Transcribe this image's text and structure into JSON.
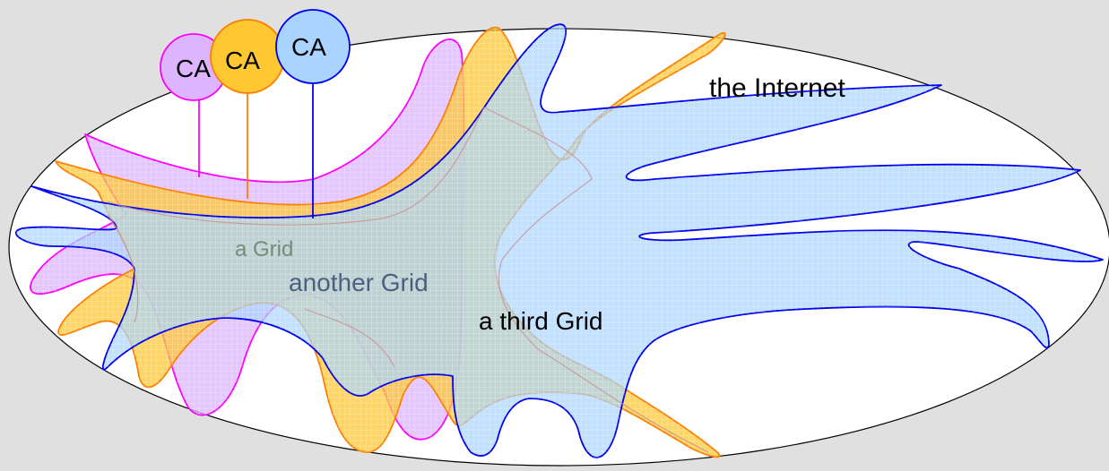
{
  "labels": {
    "internet": "the Internet",
    "grid_a": "a Grid",
    "grid_b": "another Grid",
    "grid_c": "a third Grid",
    "ca_1": "CA",
    "ca_2": "CA",
    "ca_3": "CA"
  },
  "colors": {
    "background": "#e0e0e0",
    "internet_fill": "#ffffff",
    "grid_a_stroke": "#ff00ff",
    "grid_a_fill": "#dcb4ff",
    "grid_b_stroke": "#ff7f00",
    "grid_b_fill": "#ffc832",
    "grid_c_stroke": "#0000ee",
    "grid_c_fill": "#a8d4ff",
    "label_a": "#7a8a7a",
    "label_b": "#4a6080",
    "label_c": "#000000"
  }
}
